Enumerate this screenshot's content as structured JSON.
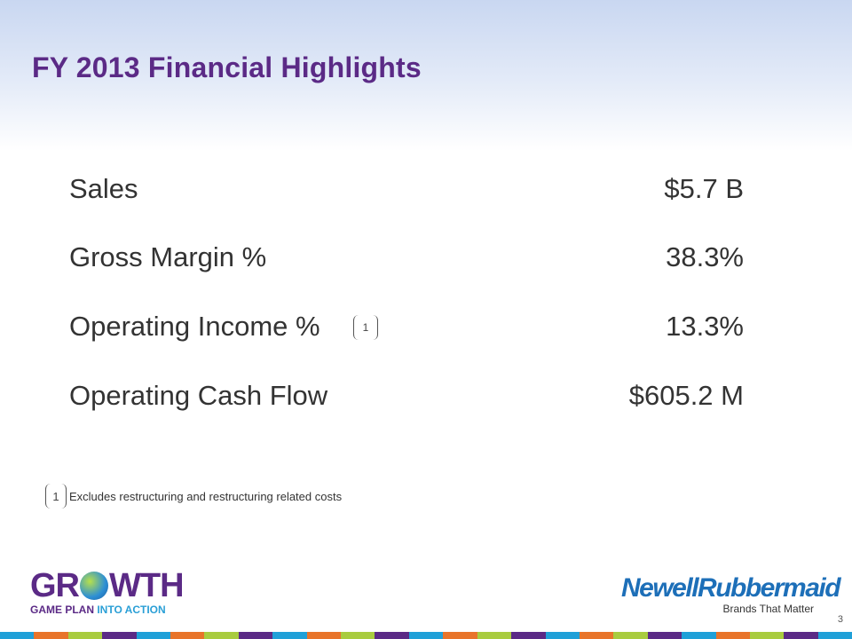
{
  "slide": {
    "title": "FY 2013 Financial Highlights",
    "metrics": [
      {
        "label": "Sales",
        "value": "$5.7 B"
      },
      {
        "label": "Gross Margin %",
        "value": "38.3%"
      },
      {
        "label": "Operating Income %",
        "value": "13.3%",
        "footnote_ref": "1"
      },
      {
        "label": "Operating Cash Flow",
        "value": "$605.2 M"
      }
    ],
    "footnote": {
      "marker": "1",
      "text": "Excludes restructuring and restructuring related costs"
    },
    "page_number": "3"
  },
  "branding": {
    "growth_logo": {
      "word_left": "GR",
      "word_right": "WTH",
      "tagline_main": "GAME PLAN ",
      "tagline_accent": "INTO ACTION"
    },
    "company_logo": {
      "name": "NewellRubbermaid",
      "tagline": "Brands That Matter"
    }
  },
  "colors": {
    "title": "#5b2a86",
    "strip": [
      "#1fa0d8",
      "#e8742a",
      "#a9cc3f",
      "#5b2a86",
      "#1fa0d8",
      "#e8742a",
      "#a9cc3f",
      "#5b2a86",
      "#1fa0d8",
      "#e8742a",
      "#a9cc3f",
      "#5b2a86",
      "#1fa0d8",
      "#e8742a",
      "#a9cc3f",
      "#5b2a86",
      "#1fa0d8",
      "#e8742a",
      "#a9cc3f",
      "#5b2a86",
      "#1fa0d8",
      "#e8742a",
      "#a9cc3f",
      "#5b2a86",
      "#1fa0d8"
    ]
  }
}
